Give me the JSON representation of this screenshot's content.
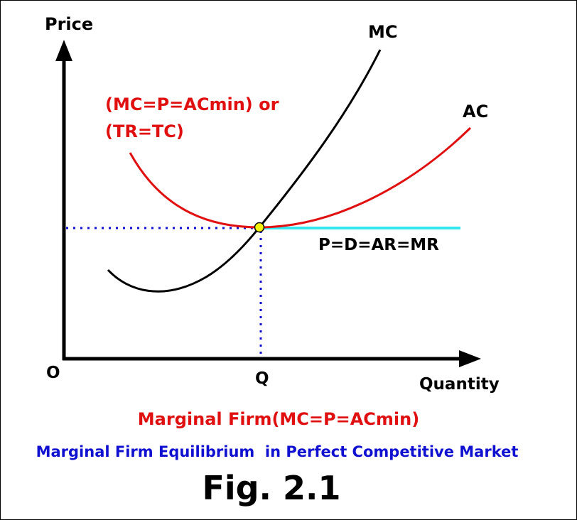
{
  "axes": {
    "y_label": "Price",
    "x_label": "Quantity",
    "origin": "O",
    "q_label": "Q"
  },
  "curves": {
    "mc": "MC",
    "ac": "AC",
    "price_line": "P=D=AR=MR"
  },
  "annotation": {
    "line1": "(MC=P=ACmin) or",
    "line2": "(TR=TC)"
  },
  "caption": {
    "condition": "Marginal Firm(MC=P=ACmin)",
    "subtitle": "Marginal Firm Equilibrium  in Perfect Competitive Market",
    "figure": "Fig. 2.1"
  }
}
